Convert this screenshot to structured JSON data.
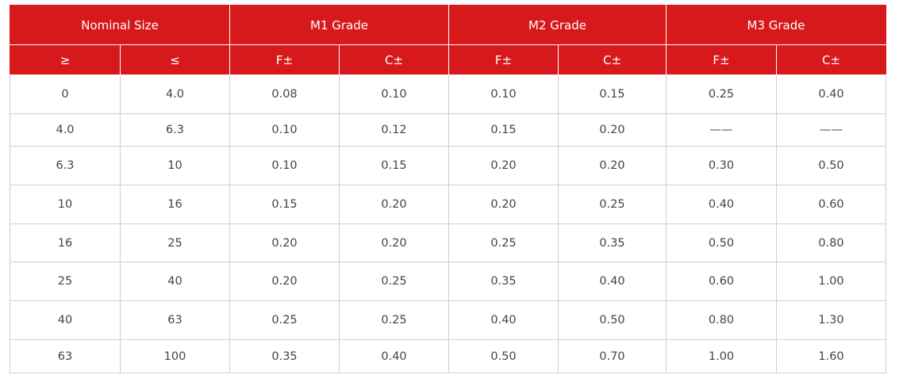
{
  "table": {
    "header_groups": [
      "Nominal Size",
      "M1 Grade",
      "M2 Grade",
      "M3 Grade"
    ],
    "subheaders": [
      "≥",
      "≤",
      "F±",
      "C±",
      "F±",
      "C±",
      "F±",
      "C±"
    ],
    "rows": [
      [
        "0",
        "4.0",
        "0.08",
        "0.10",
        "0.10",
        "0.15",
        "0.25",
        "0.40"
      ],
      [
        "4.0",
        "6.3",
        "0.10",
        "0.12",
        "0.15",
        "0.20",
        "——",
        "——"
      ],
      [
        "6.3",
        "10",
        "0.10",
        "0.15",
        "0.20",
        "0.20",
        "0.30",
        "0.50"
      ],
      [
        "10",
        "16",
        "0.15",
        "0.20",
        "0.20",
        "0.25",
        "0.40",
        "0.60"
      ],
      [
        "16",
        "25",
        "0.20",
        "0.20",
        "0.25",
        "0.35",
        "0.50",
        "0.80"
      ],
      [
        "25",
        "40",
        "0.20",
        "0.25",
        "0.35",
        "0.40",
        "0.60",
        "1.00"
      ],
      [
        "40",
        "63",
        "0.25",
        "0.25",
        "0.40",
        "0.50",
        "0.80",
        "1.30"
      ],
      [
        "63",
        "100",
        "0.35",
        "0.40",
        "0.50",
        "0.70",
        "1.00",
        "1.60"
      ]
    ]
  }
}
